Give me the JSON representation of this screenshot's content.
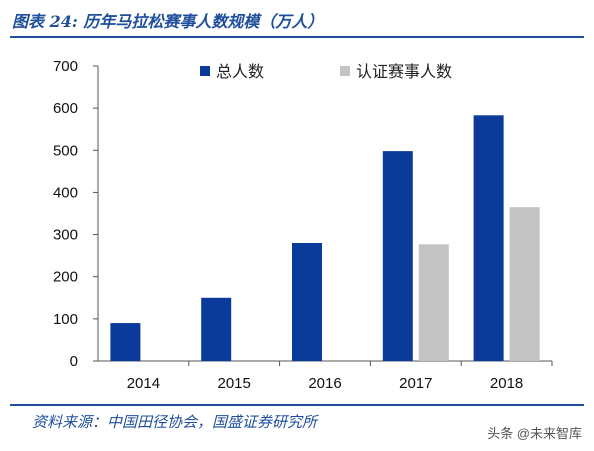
{
  "header": {
    "title": "图表 24: 历年马拉松赛事人数规模（万人）"
  },
  "footer": {
    "source": "资料来源：中国田径协会，国盛证券研究所"
  },
  "watermark": {
    "text": "头条 @未来智库"
  },
  "colors": {
    "accent": "#1f4e9c",
    "total": "#0a3a9a",
    "certified": "#c3c3c3"
  },
  "chart_data": {
    "type": "bar",
    "title": "历年马拉松赛事人数规模（万人）",
    "xlabel": "",
    "ylabel": "",
    "categories": [
      "2014",
      "2015",
      "2016",
      "2017",
      "2018"
    ],
    "ylim": [
      0,
      700
    ],
    "yticks": [
      "0",
      "100",
      "200",
      "300",
      "400",
      "500",
      "600",
      "700"
    ],
    "grid": false,
    "legend_position": "top",
    "series": [
      {
        "name": "总人数",
        "color": "#0a3a9a",
        "values": [
          90,
          150,
          280,
          498,
          583
        ]
      },
      {
        "name": "认证赛事人数",
        "color": "#c3c3c3",
        "values": [
          null,
          null,
          null,
          277,
          365
        ]
      }
    ]
  }
}
